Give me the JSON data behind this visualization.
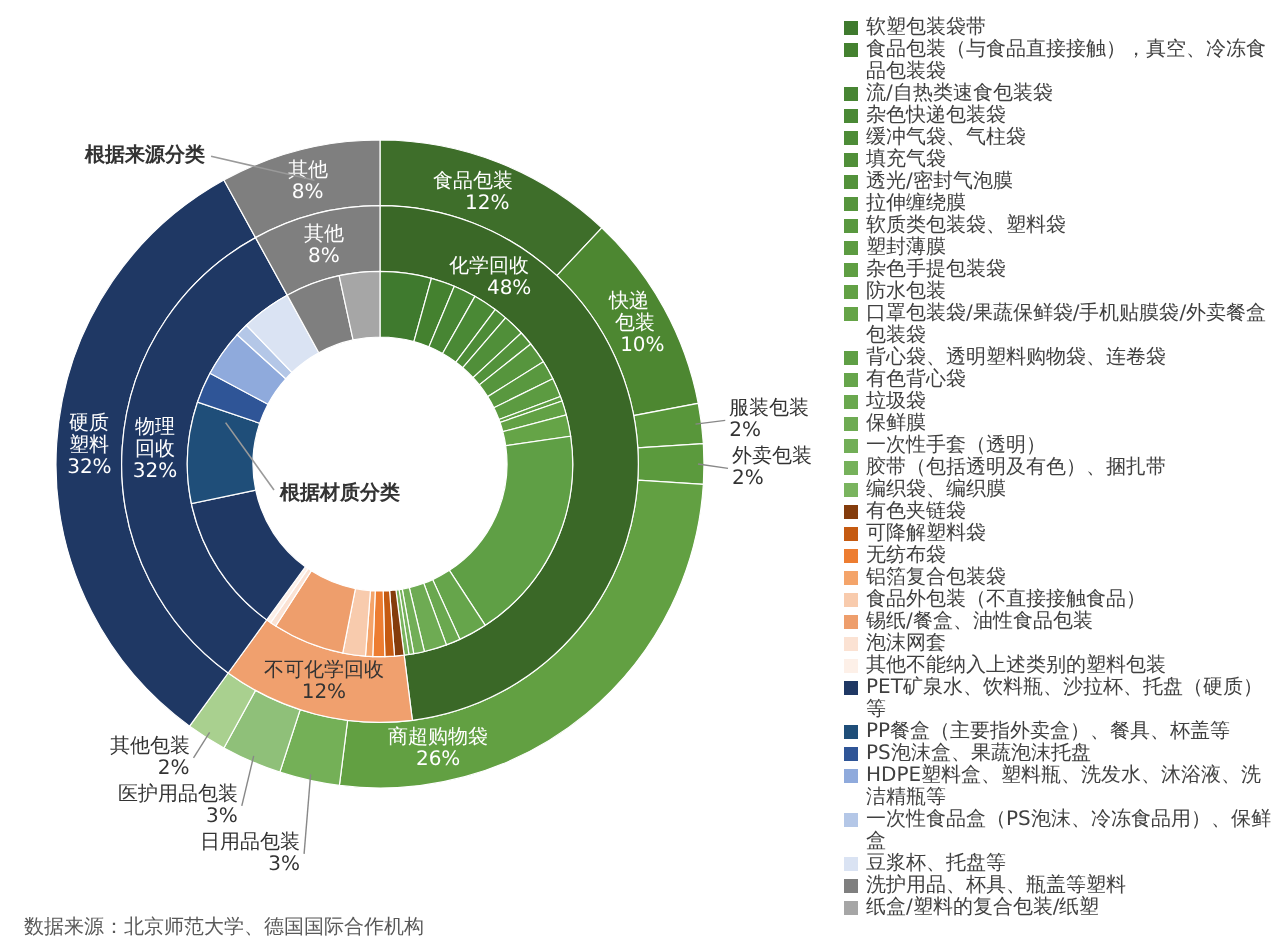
{
  "chart_data": [
    {
      "type": "donut",
      "categories": [
        "食品包装",
        "快递包装",
        "服装包装",
        "外卖包装",
        "商超购物袋",
        "日用品包装",
        "医护用品包装",
        "其他包装",
        "硬质塑料",
        "其他"
      ],
      "values": [
        12,
        10,
        2,
        2,
        26,
        3,
        3,
        2,
        32,
        8
      ],
      "value_labels": [
        "12%",
        "10%",
        "2%",
        "2%",
        "26%",
        "3%",
        "3%",
        "2%",
        "32%",
        "8%"
      ],
      "colors": [
        "#3e6e2a",
        "#4d8731",
        "#58963a",
        "#5b9a3d",
        "#62a042",
        "#74b057",
        "#8fc079",
        "#a9d08f",
        "#1f3864",
        "#7f7f7f"
      ],
      "annotations": [
        "根据来源分类",
        "数据来源：北京师范大学、德国国际合作机构"
      ]
    },
    {
      "type": "donut",
      "categories": [
        "化学回收",
        "不可化学回收",
        "物理回收",
        "其他"
      ],
      "values": [
        48,
        12,
        32,
        8
      ],
      "value_labels": [
        "48%",
        "12%",
        "32%",
        "8%"
      ],
      "colors": [
        "#3a6827",
        "#f0a06e",
        "#1f3864",
        "#7f7f7f"
      ]
    },
    {
      "type": "donut",
      "categories": [
        "软塑包装袋带",
        "食品包装（与食品直接接触），真空、冷冻食品包装袋",
        "流/自热类速食包装袋",
        "杂色快递包装袋",
        "缓冲气袋、气柱袋",
        "填充气袋",
        "透光/密封气泡膜",
        "拉伸缠绕膜",
        "软质类包装袋、塑料袋",
        "塑封薄膜",
        "杂色手提包装袋",
        "防水包装",
        "口罩包装袋/果蔬保鲜袋/手机贴膜袋/外卖餐盒包装袋",
        "背心袋、透明塑料购物袋、连卷袋",
        "有色背心袋",
        "垃圾袋",
        "保鲜膜",
        "一次性手套（透明）",
        "胶带（包括透明及有色）、捆扎带",
        "编织袋、编织膜",
        "有色夹链袋",
        "可降解塑料袋",
        "无纺布袋",
        "铝箔复合包装袋",
        "食品外包装（不直接接触食品）",
        "锡纸/餐盒、油性食品包装",
        "泡沫网套",
        "其他不能纳入上述类别的塑料包装",
        "PET矿泉水、饮料瓶、沙拉杯、托盘（硬质）等",
        "PP餐盒（主要指外卖盒）、餐具、杯盖等",
        "PS泡沫盒、果蔬泡沫托盘",
        "HDPE塑料盒、塑料瓶、洗发水、沐浴液、洗洁精瓶等",
        "一次性食品盒（PS泡沫、冷冻食品用）、保鲜盒",
        "豆浆杯、托盘等",
        "洗护用品、杯具、瓶盖等塑料",
        "纸盒/塑料的复合包装/纸塑"
      ],
      "values": [
        4.3,
        2.0,
        1.9,
        2.0,
        1.1,
        1.8,
        1.2,
        1.8,
        1.6,
        1.6,
        0.4,
        1.2,
        1.8,
        18.1,
        2.4,
        1.2,
        1.9,
        0.9,
        0.4,
        0.4,
        0.8,
        0.8,
        1.0,
        0.6,
        1.9,
        6.0,
        0.5,
        0.4,
        11.7,
        8.5,
        2.6,
        3.9,
        1.1,
        4.2,
        4.6,
        3.4
      ],
      "colors": [
        "#3f7a2e",
        "#44812f",
        "#478533",
        "#4a8935",
        "#4d8c37",
        "#508f39",
        "#53923b",
        "#56953d",
        "#59983f",
        "#5c9b41",
        "#5f9e43",
        "#62a145",
        "#65a447",
        "#5f9f45",
        "#66a54b",
        "#6aa84f",
        "#6eab53",
        "#72ae57",
        "#76b15b",
        "#7ab45f",
        "#843c0c",
        "#c55a11",
        "#ed7d31",
        "#f4a46a",
        "#f8cbad",
        "#ee9e6c",
        "#fbe2d3",
        "#fdf0e8",
        "#1f3864",
        "#1f4e79",
        "#2f5597",
        "#8faadc",
        "#b4c7e7",
        "#dae3f3",
        "#7f7f7f",
        "#a6a6a6"
      ],
      "legend": "right",
      "annotations": [
        "根据材质分类"
      ]
    }
  ]
}
